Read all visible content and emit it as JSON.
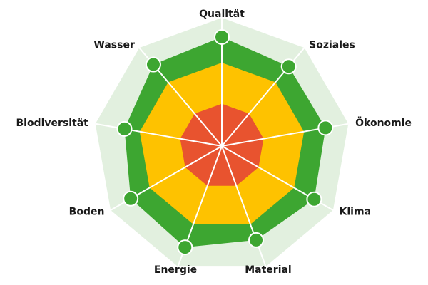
{
  "chart_data": {
    "type": "radar",
    "categories": [
      "Qualität",
      "Soziales",
      "Ökonomie",
      "Klima",
      "Material",
      "Energie",
      "Boden",
      "Biodiversität",
      "Wasser"
    ],
    "values": [
      85,
      81,
      82,
      83,
      78,
      84,
      82,
      77,
      83
    ],
    "color": "#3da631",
    "ylim": [
      0,
      100
    ],
    "background_color": "#e2f0df",
    "bands": [
      {
        "value": 65,
        "color": "#fec200"
      },
      {
        "value": 33,
        "color": "#e8532f"
      }
    ]
  }
}
